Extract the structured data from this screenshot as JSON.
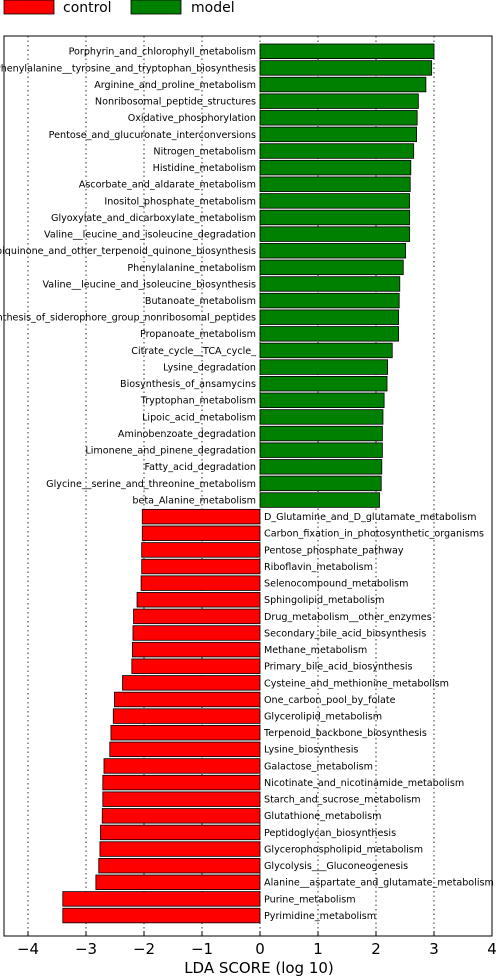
{
  "chart_data": {
    "type": "bar",
    "orientation": "horizontal",
    "xlabel": "LDA SCORE (log 10)",
    "xlim": [
      -4,
      4
    ],
    "xticks": [
      -4,
      -3,
      -2,
      -1,
      0,
      1,
      2,
      3,
      4
    ],
    "xtick_labels": [
      "−4",
      "−3",
      "−2",
      "−1",
      "0",
      "1",
      "2",
      "3",
      "4"
    ],
    "grid": "vertical dotted",
    "legend": {
      "placement": "top-left",
      "entries": [
        {
          "name": "control",
          "color": "#ff0000"
        },
        {
          "name": "model",
          "color": "#008000"
        }
      ]
    },
    "series": [
      {
        "name": "model",
        "color": "#008000",
        "categories": [
          "Porphyrin_and_chlorophyll_metabolism",
          "Phenylalanine__tyrosine_and_tryptophan_biosynthesis",
          "Arginine_and_proline_metabolism",
          "Nonribosomal_peptide_structures",
          "Oxidative_phosphorylation",
          "Pentose_and_glucuronate_interconversions",
          "Nitrogen_metabolism",
          "Histidine_metabolism",
          "Ascorbate_and_aldarate_metabolism",
          "Inositol_phosphate_metabolism",
          "Glyoxylate_and_dicarboxylate_metabolism",
          "Valine__leucine_and_isoleucine_degradation",
          "Ubiquinone_and_other_terpenoid_quinone_biosynthesis",
          "Phenylalanine_metabolism",
          "Valine__leucine_and_isoleucine_biosynthesis",
          "Butanoate_metabolism",
          "Biosynthesis_of_siderophore_group_nonribosomal_peptides",
          "Propanoate_metabolism",
          "Citrate_cycle__TCA_cycle_",
          "Lysine_degradation",
          "Biosynthesis_of_ansamycins",
          "Tryptophan_metabolism",
          "Lipoic_acid_metabolism",
          "Aminobenzoate_degradation",
          "Limonene_and_pinene_degradation",
          "Fatty_acid_degradation",
          "Glycine__serine_and_threonine_metabolism",
          "beta_Alanine_metabolism"
        ],
        "values": [
          3.0,
          2.96,
          2.86,
          2.73,
          2.71,
          2.7,
          2.65,
          2.6,
          2.59,
          2.58,
          2.58,
          2.58,
          2.51,
          2.47,
          2.41,
          2.4,
          2.39,
          2.39,
          2.28,
          2.2,
          2.19,
          2.14,
          2.12,
          2.11,
          2.11,
          2.1,
          2.09,
          2.06
        ]
      },
      {
        "name": "control",
        "color": "#ff0000",
        "categories": [
          "D_Glutamine_and_D_glutamate_metabolism",
          "Carbon_fixation_in_photosynthetic_organisms",
          "Pentose_phosphate_pathway",
          "Riboflavin_metabolism",
          "Selenocompound_metabolism",
          "Sphingolipid_metabolism",
          "Drug_metabolism__other_enzymes",
          "Secondary_bile_acid_biosynthesis",
          "Methane_metabolism",
          "Primary_bile_acid_biosynthesis",
          "Cysteine_and_methionine_metabolism",
          "One_carbon_pool_by_folate",
          "Glycerolipid_metabolism",
          "Terpenoid_backbone_biosynthesis",
          "Lysine_biosynthesis",
          "Galactose_metabolism",
          "Nicotinate_and_nicotinamide_metabolism",
          "Starch_and_sucrose_metabolism",
          "Glutathione_metabolism",
          "Peptidoglycan_biosynthesis",
          "Glycerophospholipid_metabolism",
          "Glycolysis___Gluconeogenesis",
          "Alanine__aspartate_and_glutamate_metabolism",
          "Purine_metabolism",
          "Pyrimidine_metabolism"
        ],
        "values": [
          -2.03,
          -2.03,
          -2.04,
          -2.04,
          -2.05,
          -2.12,
          -2.18,
          -2.19,
          -2.2,
          -2.21,
          -2.37,
          -2.51,
          -2.53,
          -2.57,
          -2.59,
          -2.69,
          -2.71,
          -2.71,
          -2.72,
          -2.75,
          -2.76,
          -2.78,
          -2.83,
          -3.4,
          -3.4
        ]
      }
    ]
  }
}
